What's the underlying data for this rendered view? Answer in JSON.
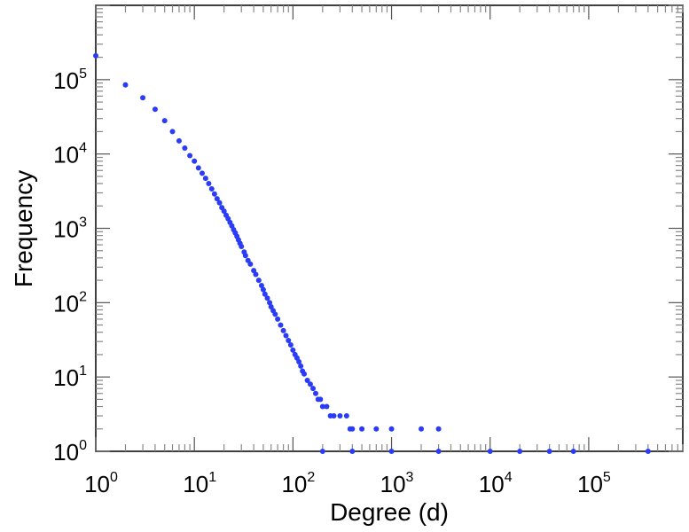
{
  "chart_data": {
    "type": "scatter",
    "x_scale": "log",
    "y_scale": "log",
    "xlabel": "Degree (d)",
    "ylabel": "Frequency",
    "xlim": [
      1,
      900000
    ],
    "ylim": [
      1,
      1000000
    ],
    "x_ticks": [
      {
        "base": "10",
        "exp": "0",
        "value": 1
      },
      {
        "base": "10",
        "exp": "1",
        "value": 10
      },
      {
        "base": "10",
        "exp": "2",
        "value": 100
      },
      {
        "base": "10",
        "exp": "3",
        "value": 1000
      },
      {
        "base": "10",
        "exp": "4",
        "value": 10000
      },
      {
        "base": "10",
        "exp": "5",
        "value": 100000
      }
    ],
    "y_ticks": [
      {
        "base": "10",
        "exp": "0",
        "value": 1
      },
      {
        "base": "10",
        "exp": "1",
        "value": 10
      },
      {
        "base": "10",
        "exp": "2",
        "value": 100
      },
      {
        "base": "10",
        "exp": "3",
        "value": 1000
      },
      {
        "base": "10",
        "exp": "4",
        "value": 10000
      },
      {
        "base": "10",
        "exp": "5",
        "value": 100000
      }
    ],
    "grid": false,
    "marker_color": "#2a3cf5",
    "points": [
      [
        1,
        210000
      ],
      [
        2,
        85000
      ],
      [
        3,
        57000
      ],
      [
        4,
        40000
      ],
      [
        5,
        28000
      ],
      [
        6,
        20000
      ],
      [
        7,
        15000
      ],
      [
        8,
        12000
      ],
      [
        9,
        9500
      ],
      [
        10,
        8000
      ],
      [
        11,
        6500
      ],
      [
        12,
        5500
      ],
      [
        13,
        4700
      ],
      [
        14,
        4000
      ],
      [
        15,
        3400
      ],
      [
        16,
        2900
      ],
      [
        17,
        2500
      ],
      [
        18,
        2200
      ],
      [
        19,
        1900
      ],
      [
        20,
        1700
      ],
      [
        21,
        1500
      ],
      [
        22,
        1350
      ],
      [
        23,
        1200
      ],
      [
        24,
        1080
      ],
      [
        25,
        960
      ],
      [
        26,
        870
      ],
      [
        27,
        780
      ],
      [
        28,
        700
      ],
      [
        29,
        630
      ],
      [
        30,
        570
      ],
      [
        32,
        480
      ],
      [
        33,
        430
      ],
      [
        35,
        370
      ],
      [
        37,
        330
      ],
      [
        40,
        270
      ],
      [
        42,
        240
      ],
      [
        45,
        200
      ],
      [
        48,
        170
      ],
      [
        50,
        150
      ],
      [
        52,
        130
      ],
      [
        55,
        115
      ],
      [
        58,
        100
      ],
      [
        60,
        88
      ],
      [
        63,
        78
      ],
      [
        66,
        70
      ],
      [
        70,
        60
      ],
      [
        75,
        50
      ],
      [
        80,
        42
      ],
      [
        85,
        36
      ],
      [
        90,
        31
      ],
      [
        95,
        27
      ],
      [
        100,
        23
      ],
      [
        105,
        20
      ],
      [
        110,
        18
      ],
      [
        115,
        16
      ],
      [
        120,
        14
      ],
      [
        125,
        12
      ],
      [
        130,
        11
      ],
      [
        140,
        9
      ],
      [
        150,
        8
      ],
      [
        160,
        7
      ],
      [
        170,
        6
      ],
      [
        180,
        5
      ],
      [
        190,
        5
      ],
      [
        200,
        4
      ],
      [
        220,
        4
      ],
      [
        240,
        3
      ],
      [
        260,
        3
      ],
      [
        300,
        3
      ],
      [
        350,
        3
      ],
      [
        380,
        2
      ],
      [
        400,
        2
      ],
      [
        500,
        2
      ],
      [
        700,
        2
      ],
      [
        1000,
        2
      ],
      [
        2000,
        2
      ],
      [
        3000,
        2
      ],
      [
        200,
        1
      ],
      [
        400,
        1
      ],
      [
        1000,
        1
      ],
      [
        3000,
        1
      ],
      [
        10000,
        1
      ],
      [
        20000,
        1
      ],
      [
        40000,
        1
      ],
      [
        70000,
        1
      ],
      [
        400000,
        1
      ]
    ]
  }
}
